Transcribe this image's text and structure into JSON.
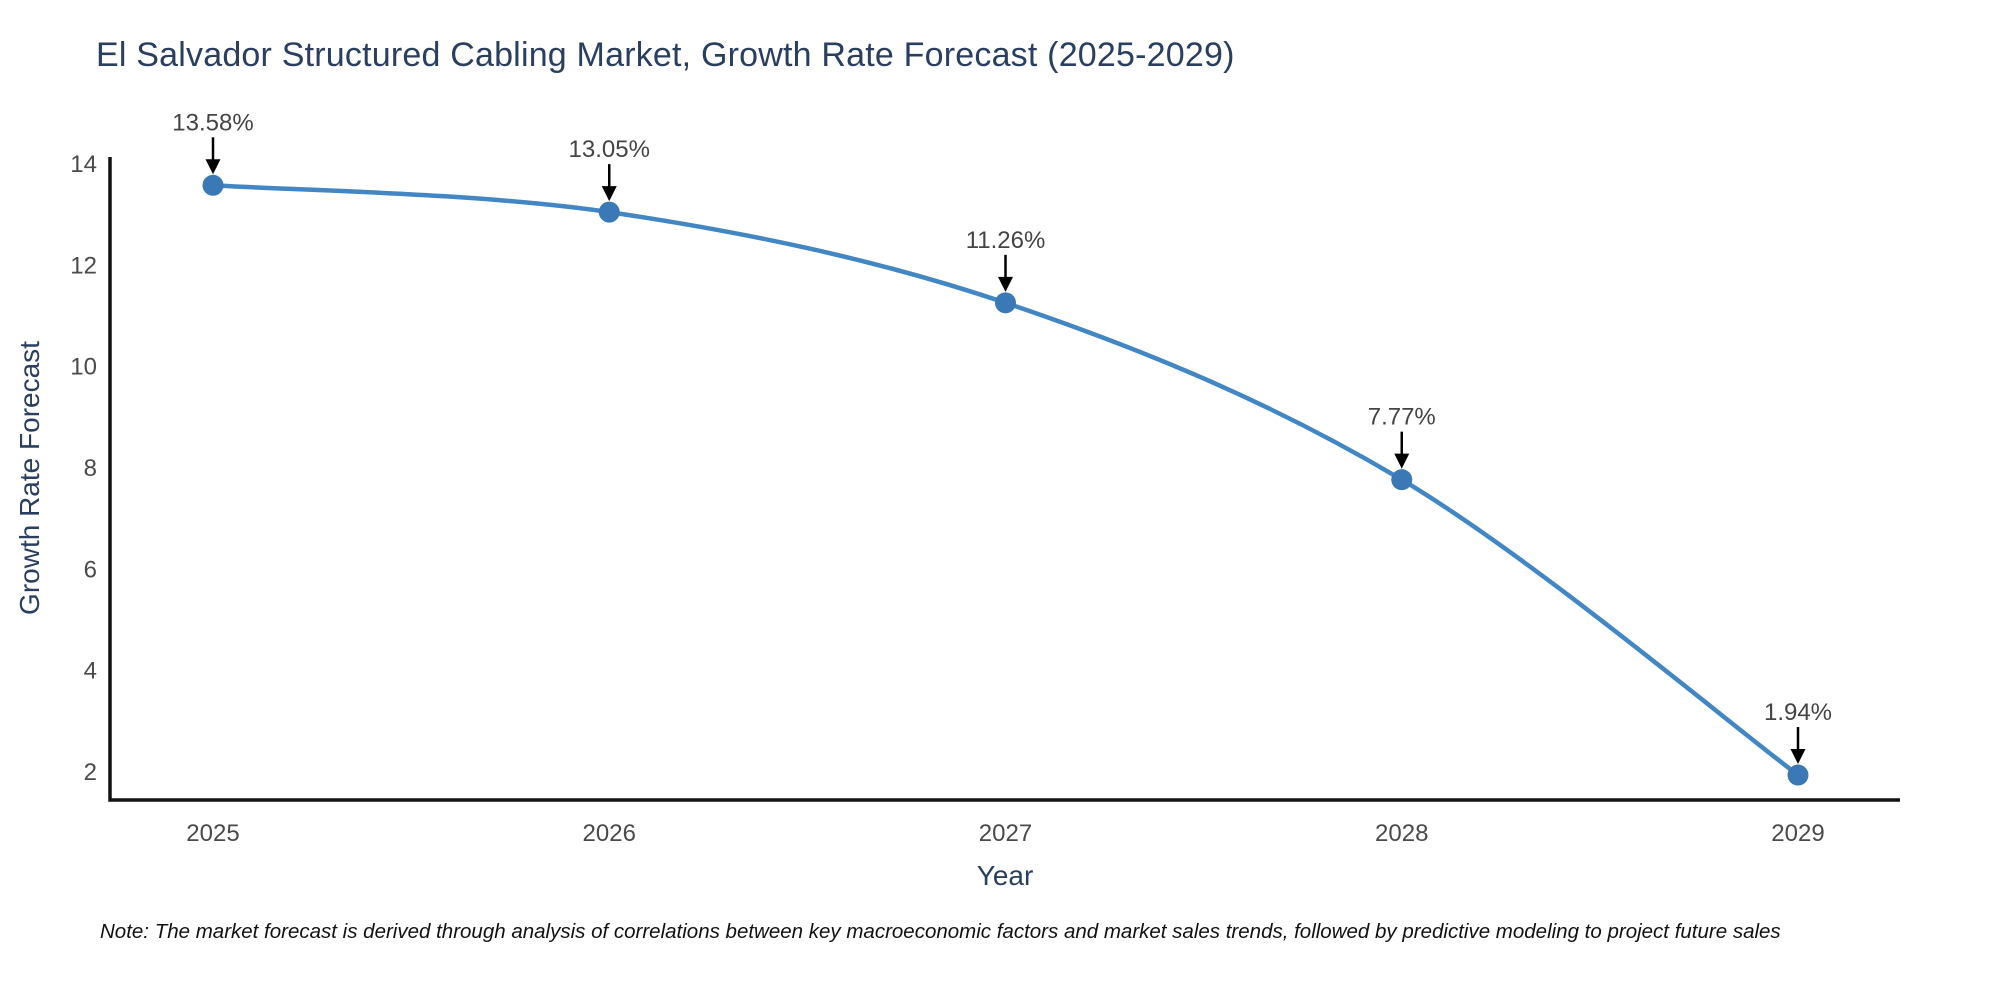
{
  "chart_data": {
    "type": "line",
    "title": "El Salvador Structured Cabling Market, Growth Rate Forecast (2025-2029)",
    "xlabel": "Year",
    "ylabel": "Growth Rate Forecast",
    "categories": [
      "2025",
      "2026",
      "2027",
      "2028",
      "2029"
    ],
    "values": [
      13.58,
      13.05,
      11.26,
      7.77,
      1.94
    ],
    "point_labels": [
      "13.58%",
      "13.05%",
      "11.26%",
      "7.77%",
      "1.94%"
    ],
    "yticks": [
      2,
      4,
      6,
      8,
      10,
      12,
      14
    ],
    "ylim": [
      1.45,
      14.7
    ],
    "grid": false,
    "legend": "none",
    "line_style": "spline",
    "line_color": "#4286c4",
    "marker_color": "#3a79b5",
    "axis_color": "#111111",
    "tick_color": "#4a4a4a",
    "annotation_color": "#444444",
    "arrow_color": "#000000",
    "title_color": "#2a3f5f"
  },
  "note": "Note: The market forecast is derived through analysis of correlations between key macroeconomic factors and market sales trends, followed by predictive modeling to project future sales"
}
